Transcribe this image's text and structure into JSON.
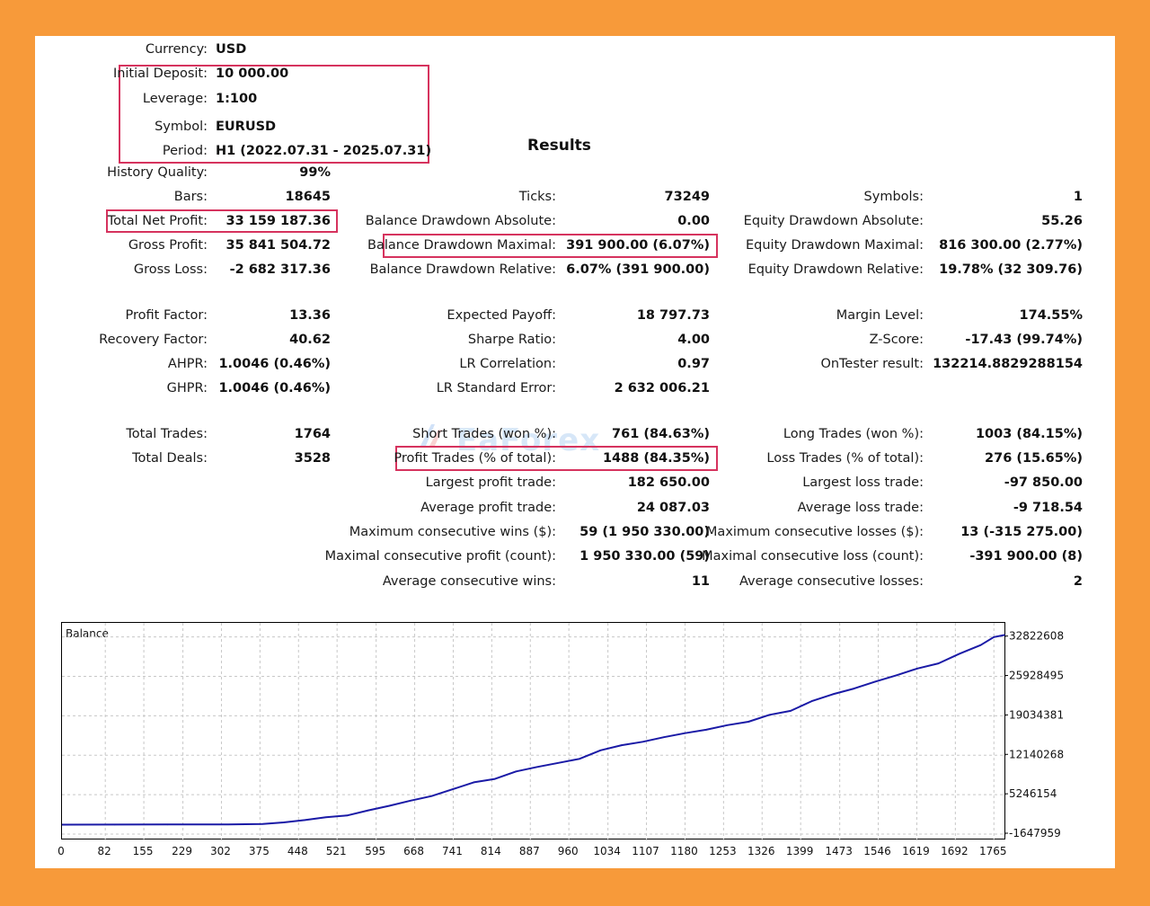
{
  "header": {
    "currency_label": "Currency:",
    "currency": "USD",
    "deposit_label": "Initial Deposit:",
    "deposit": "10 000.00",
    "leverage_label": "Leverage:",
    "leverage": "1:100",
    "symbol_label": "Symbol:",
    "symbol": "EURUSD",
    "period_label": "Period:",
    "period": "H1 (2022.07.31 - 2025.07.31)"
  },
  "results_title": "Results",
  "quality": {
    "label": "History Quality:",
    "value": "99%"
  },
  "col1": [
    {
      "label": "Bars:",
      "value": "18645"
    },
    {
      "label": "Total Net Profit:",
      "value": "33 159 187.36"
    },
    {
      "label": "Gross Profit:",
      "value": "35 841 504.72"
    },
    {
      "label": "Gross Loss:",
      "value": "-2 682 317.36"
    },
    {
      "label": "Profit Factor:",
      "value": "13.36"
    },
    {
      "label": "Recovery Factor:",
      "value": "40.62"
    },
    {
      "label": "AHPR:",
      "value": "1.0046 (0.46%)"
    },
    {
      "label": "GHPR:",
      "value": "1.0046 (0.46%)"
    },
    {
      "label": "Total Trades:",
      "value": "1764"
    },
    {
      "label": "Total Deals:",
      "value": "3528"
    }
  ],
  "col2": [
    {
      "label": "Ticks:",
      "value": "73249"
    },
    {
      "label": "Balance Drawdown Absolute:",
      "value": "0.00"
    },
    {
      "label": "Balance Drawdown Maximal:",
      "value": "391 900.00 (6.07%)"
    },
    {
      "label": "Balance Drawdown Relative:",
      "value": "6.07% (391 900.00)"
    },
    {
      "label": "Expected Payoff:",
      "value": "18 797.73"
    },
    {
      "label": "Sharpe Ratio:",
      "value": "4.00"
    },
    {
      "label": "LR Correlation:",
      "value": "0.97"
    },
    {
      "label": "LR Standard Error:",
      "value": "2 632 006.21"
    },
    {
      "label": "Short Trades (won %):",
      "value": "761 (84.63%)"
    },
    {
      "label": "Profit Trades (% of total):",
      "value": "1488 (84.35%)"
    },
    {
      "label": "Largest profit trade:",
      "value": "182 650.00"
    },
    {
      "label": "Average profit trade:",
      "value": "24 087.03"
    },
    {
      "label": "Maximum consecutive wins ($):",
      "value": "59 (1 950 330.00)"
    },
    {
      "label": "Maximal consecutive profit (count):",
      "value": "1 950 330.00 (59)"
    },
    {
      "label": "Average consecutive wins:",
      "value": "11"
    }
  ],
  "col3": [
    {
      "label": "Symbols:",
      "value": "1"
    },
    {
      "label": "Equity Drawdown Absolute:",
      "value": "55.26"
    },
    {
      "label": "Equity Drawdown Maximal:",
      "value": "816 300.00 (2.77%)"
    },
    {
      "label": "Equity Drawdown Relative:",
      "value": "19.78% (32 309.76)"
    },
    {
      "label": "Margin Level:",
      "value": "174.55%"
    },
    {
      "label": "Z-Score:",
      "value": "-17.43 (99.74%)"
    },
    {
      "label": "OnTester result:",
      "value": "132214.8829288154"
    },
    {
      "label": "Long Trades (won %):",
      "value": "1003 (84.15%)"
    },
    {
      "label": "Loss Trades (% of total):",
      "value": "276 (15.65%)"
    },
    {
      "label": "Largest loss trade:",
      "value": "-97 850.00"
    },
    {
      "label": "Average loss trade:",
      "value": "-9 718.54"
    },
    {
      "label": "Maximum consecutive losses ($):",
      "value": "13 (-315 275.00)"
    },
    {
      "label": "Maximal consecutive loss (count):",
      "value": "-391 900.00 (8)"
    },
    {
      "label": "Average consecutive losses:",
      "value": "2"
    }
  ],
  "watermark": "EaForex",
  "chart_data": {
    "type": "line",
    "title": "Balance",
    "x_ticks": [
      "0",
      "82",
      "155",
      "229",
      "302",
      "375",
      "448",
      "521",
      "595",
      "668",
      "741",
      "814",
      "887",
      "960",
      "1034",
      "1107",
      "1180",
      "1253",
      "1326",
      "1399",
      "1473",
      "1546",
      "1619",
      "1692",
      "1765"
    ],
    "y_ticks": [
      "32822608",
      "25928495",
      "19034381",
      "12140268",
      "5246154",
      "-1647959"
    ],
    "xlim": [
      0,
      1785
    ],
    "ylim": [
      -1647959,
      34500000
    ],
    "grid": true,
    "line_color": "#1a1aa6",
    "series": [
      {
        "x": [
          0,
          100,
          200,
          300,
          380,
          420,
          460,
          500,
          540,
          580,
          620,
          660,
          700,
          740,
          780,
          820,
          860,
          900,
          940,
          980,
          1020,
          1060,
          1100,
          1140,
          1180,
          1220,
          1260,
          1300,
          1340,
          1380,
          1420,
          1460,
          1500,
          1540,
          1580,
          1620,
          1660,
          1700,
          1740,
          1765,
          1785
        ],
        "values": [
          10000,
          15000,
          30000,
          40000,
          120000,
          400000,
          800000,
          1300000,
          1600000,
          2500000,
          3300000,
          4200000,
          5000000,
          6200000,
          7400000,
          8000000,
          9300000,
          10100000,
          10800000,
          11500000,
          13000000,
          13900000,
          14500000,
          15300000,
          16000000,
          16600000,
          17400000,
          18000000,
          19200000,
          19900000,
          21600000,
          22800000,
          23800000,
          25000000,
          26100000,
          27300000,
          28200000,
          29900000,
          31400000,
          32800000,
          33159187
        ]
      }
    ]
  }
}
